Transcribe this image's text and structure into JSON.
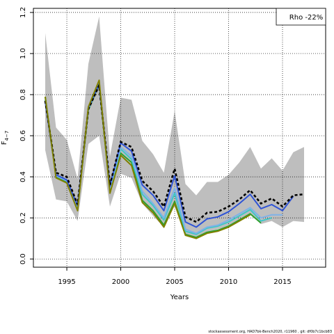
{
  "chart_data": {
    "type": "line",
    "xlabel": "Years",
    "ylabel": "F",
    "ylabel_sub": "4−7",
    "xlim": [
      1991.9,
      2019.0
    ],
    "ylim": [
      -0.04,
      1.22
    ],
    "xticks": [
      1995,
      2000,
      2005,
      2010,
      2015
    ],
    "yticks": [
      0.0,
      0.2,
      0.4,
      0.6,
      0.8,
      1.0,
      1.2
    ],
    "grid": true,
    "legend": {
      "text": "Rho -22%",
      "position": "top-right"
    },
    "footer": "stockassessment.org, HAD7bk-Bench2020, r11960 ,  git: df0b7c1bcb83",
    "band": {
      "color": "#bebebe",
      "x": [
        1993,
        1994,
        1995,
        1996,
        1997,
        1998,
        1999,
        2000,
        2001,
        2002,
        2003,
        2004,
        2005,
        2006,
        2007,
        2008,
        2009,
        2010,
        2011,
        2012,
        2013,
        2014,
        2015,
        2016,
        2017
      ],
      "upper": [
        1.1,
        0.64,
        0.58,
        0.39,
        0.95,
        1.18,
        0.5,
        0.785,
        0.775,
        0.575,
        0.51,
        0.42,
        0.72,
        0.365,
        0.31,
        0.375,
        0.375,
        0.41,
        0.47,
        0.545,
        0.44,
        0.49,
        0.43,
        0.52,
        0.545
      ],
      "lower": [
        0.53,
        0.29,
        0.28,
        0.185,
        0.56,
        0.6,
        0.255,
        0.415,
        0.395,
        0.27,
        0.21,
        0.155,
        0.26,
        0.115,
        0.1,
        0.13,
        0.145,
        0.16,
        0.185,
        0.22,
        0.17,
        0.185,
        0.155,
        0.185,
        0.18
      ]
    },
    "series": [
      {
        "color": "#2ca02c",
        "x": [
          1993,
          1994,
          1995,
          1996,
          1997,
          1998,
          1999,
          2000,
          2001,
          2002,
          2003,
          2004,
          2005,
          2006,
          2007,
          2008,
          2009,
          2010,
          2011,
          2012,
          2013
        ],
        "values": [
          0.79,
          0.4,
          0.375,
          0.245,
          0.725,
          0.85,
          0.33,
          0.515,
          0.47,
          0.285,
          0.235,
          0.165,
          0.28,
          0.12,
          0.105,
          0.13,
          0.14,
          0.16,
          0.19,
          0.22,
          0.175
        ]
      },
      {
        "color": "#3ec7c7",
        "x": [
          1993,
          1994,
          1995,
          1996,
          1997,
          1998,
          1999,
          2000,
          2001,
          2002,
          2003,
          2004,
          2005,
          2006,
          2007,
          2008,
          2009,
          2010,
          2011,
          2012,
          2013,
          2014
        ],
        "values": [
          0.775,
          0.405,
          0.38,
          0.25,
          0.73,
          0.86,
          0.34,
          0.535,
          0.485,
          0.315,
          0.26,
          0.19,
          0.32,
          0.135,
          0.12,
          0.15,
          0.16,
          0.18,
          0.21,
          0.24,
          0.185,
          0.2
        ]
      },
      {
        "color": "#7fb2e8",
        "x": [
          1993,
          1994,
          1995,
          1996,
          1997,
          1998,
          1999,
          2000,
          2001,
          2002,
          2003,
          2004,
          2005,
          2006,
          2007,
          2008,
          2009,
          2010,
          2011,
          2012,
          2013,
          2014,
          2015
        ],
        "values": [
          0.77,
          0.405,
          0.38,
          0.255,
          0.73,
          0.855,
          0.345,
          0.545,
          0.5,
          0.33,
          0.27,
          0.2,
          0.345,
          0.145,
          0.125,
          0.155,
          0.165,
          0.19,
          0.22,
          0.25,
          0.2,
          0.215,
          0.215
        ]
      },
      {
        "color": "#2f54d6",
        "x": [
          1993,
          1994,
          1995,
          1996,
          1997,
          1998,
          1999,
          2000,
          2001,
          2002,
          2003,
          2004,
          2005,
          2006,
          2007,
          2008,
          2009,
          2010,
          2011,
          2012,
          2013,
          2014,
          2015,
          2016
        ],
        "values": [
          0.765,
          0.41,
          0.385,
          0.26,
          0.735,
          0.85,
          0.355,
          0.565,
          0.525,
          0.36,
          0.31,
          0.235,
          0.405,
          0.18,
          0.155,
          0.195,
          0.205,
          0.23,
          0.27,
          0.315,
          0.245,
          0.265,
          0.235,
          0.305
        ]
      },
      {
        "color": "#000000",
        "dashed": true,
        "x": [
          1993,
          1994,
          1995,
          1996,
          1997,
          1998,
          1999,
          2000,
          2001,
          2002,
          2003,
          2004,
          2005,
          2006,
          2007,
          2008,
          2009,
          2010,
          2011,
          2012,
          2013,
          2014,
          2015,
          2016,
          2017
        ],
        "values": [
          0.77,
          0.42,
          0.4,
          0.265,
          0.73,
          0.845,
          0.36,
          0.57,
          0.545,
          0.38,
          0.33,
          0.255,
          0.44,
          0.205,
          0.18,
          0.225,
          0.23,
          0.255,
          0.29,
          0.335,
          0.27,
          0.295,
          0.255,
          0.31,
          0.315
        ]
      },
      {
        "color": "#808000",
        "x": [
          1993,
          1994,
          1995,
          1996,
          1997,
          1998,
          1999,
          2000,
          2001,
          2002,
          2003,
          2004,
          2005,
          2006,
          2007,
          2008,
          2009,
          2010,
          2011,
          2012
        ],
        "values": [
          0.79,
          0.395,
          0.37,
          0.235,
          0.74,
          0.87,
          0.32,
          0.505,
          0.455,
          0.275,
          0.225,
          0.155,
          0.27,
          0.115,
          0.1,
          0.125,
          0.135,
          0.155,
          0.185,
          0.215
        ]
      }
    ]
  }
}
